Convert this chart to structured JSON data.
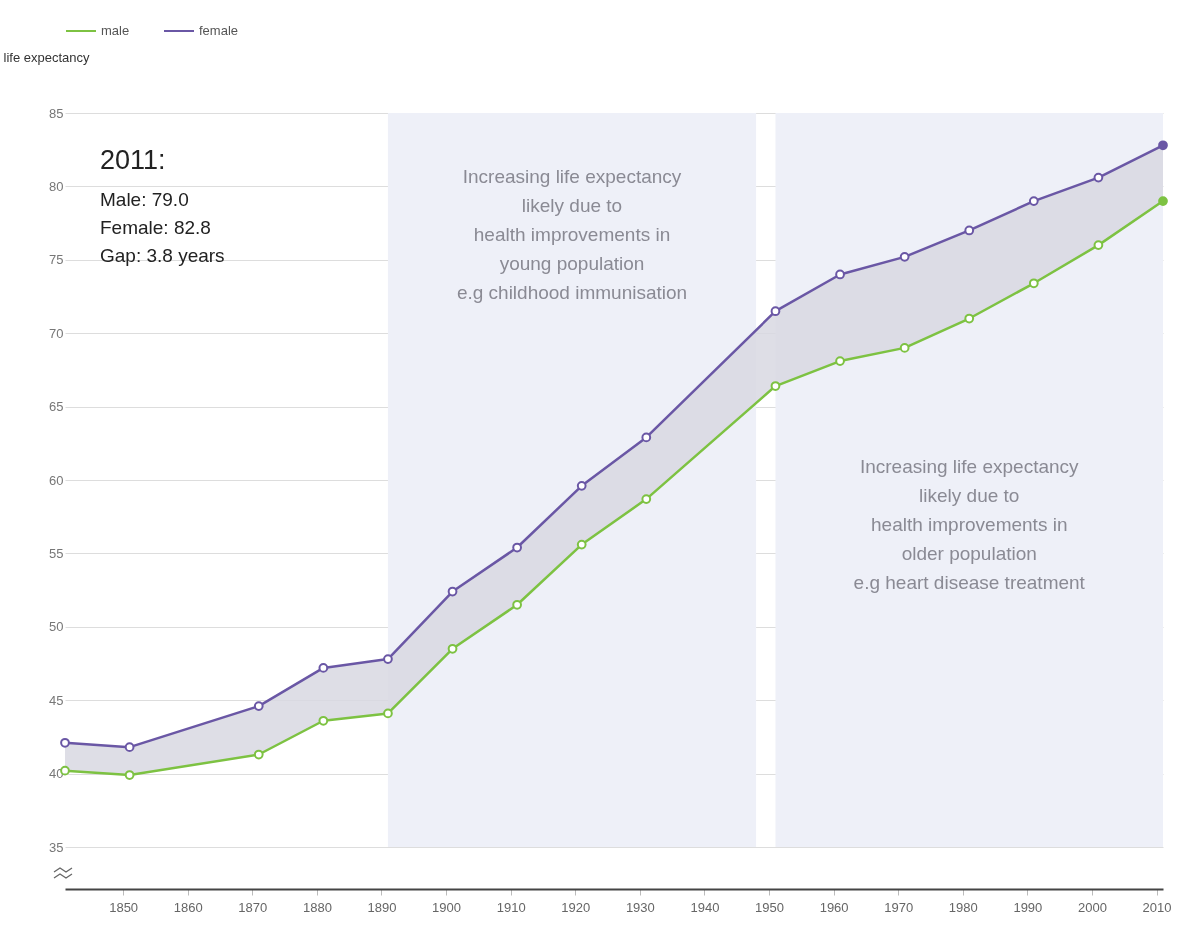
{
  "chart_data": {
    "type": "line",
    "ylabel": "life expectancy",
    "x": [
      1841,
      1851,
      1871,
      1881,
      1891,
      1901,
      1911,
      1921,
      1931,
      1951,
      1961,
      1971,
      1981,
      1991,
      2001,
      2011
    ],
    "series": [
      {
        "name": "male",
        "color": "#7dc242",
        "values": [
          40.2,
          39.9,
          41.3,
          43.6,
          44.1,
          48.5,
          51.5,
          55.6,
          58.7,
          66.4,
          68.1,
          69.0,
          71.0,
          73.4,
          76.0,
          79.0
        ]
      },
      {
        "name": "female",
        "color": "#6a57a5",
        "values": [
          42.1,
          41.8,
          44.6,
          47.2,
          47.8,
          52.4,
          55.4,
          59.6,
          62.9,
          71.5,
          74.0,
          75.2,
          77.0,
          79.0,
          80.6,
          82.8
        ],
        "lower": [
          40.2,
          39.9,
          41.3,
          43.6,
          44.1,
          48.5,
          51.5,
          55.6,
          58.7,
          66.4,
          68.1,
          69.0,
          71.0,
          73.4,
          76.0,
          79.0
        ],
        "upper": [
          42.1,
          41.8,
          44.6,
          47.2,
          47.8,
          52.4,
          55.4,
          59.6,
          62.9,
          71.5,
          74.0,
          75.2,
          77.0,
          79.0,
          80.6,
          82.8
        ]
      }
    ],
    "xlim": [
      1841,
      2011
    ],
    "xticks": [
      1850,
      1860,
      1870,
      1880,
      1890,
      1900,
      1910,
      1920,
      1930,
      1940,
      1950,
      1960,
      1970,
      1980,
      1990,
      2000,
      2010
    ],
    "ylim": [
      35,
      85
    ],
    "yticks": [
      35,
      40,
      45,
      50,
      55,
      60,
      65,
      70,
      75,
      80,
      85
    ],
    "bands": [
      {
        "axis": "x",
        "from": 1891,
        "to": 1948,
        "color": "#eef0f8",
        "label": "Increasing life expectancy\nlikely due to\nhealth improvements in\nyoung population\ne.g childhood immunisation"
      },
      {
        "axis": "x",
        "from": 1951,
        "to": 2011,
        "color": "#eef0f8",
        "label": "Increasing life expectancy\nlikely due to\nhealth improvements in\nolder population\ne.g heart disease treatment"
      }
    ],
    "annotations": [
      "2011:",
      "Male: 79.0\nFemale: 82.8\nGap: 3.8 years"
    ],
    "grid": "y",
    "legend": "top",
    "marker": "circle",
    "line_style": "solid"
  }
}
